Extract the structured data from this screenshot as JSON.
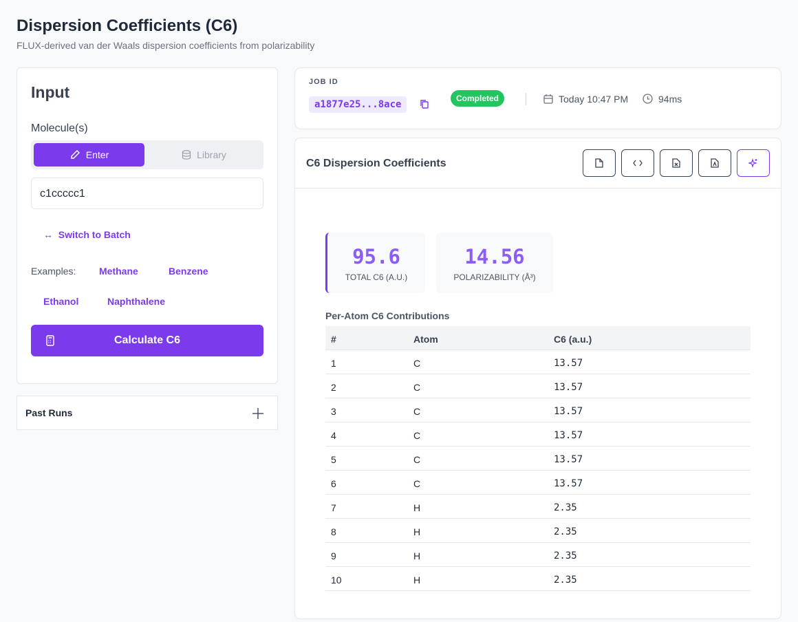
{
  "header": {
    "title": "Dispersion Coefficients (C6)",
    "subtitle": "FLUX-derived van der Waals dispersion coefficients from polarizability"
  },
  "input": {
    "title": "Input",
    "molecule_label": "Molecule(s)",
    "tabs": [
      "Enter",
      "Library"
    ],
    "smiles": "c1ccccc1",
    "switch": "Switch to Batch",
    "examples_label": "Examples:",
    "examples": [
      "Methane",
      "Benzene",
      "Ethanol",
      "Naphthalene"
    ],
    "button": "Calculate C6"
  },
  "past_runs": "Past Runs",
  "job": {
    "label": "JOB ID",
    "id": "a1877e25...8ace",
    "status": "Completed",
    "time": "Today 10:47 PM",
    "duration": "94ms"
  },
  "results": {
    "title": "C6 Dispersion Coefficients",
    "stats": [
      {
        "value": "95.6",
        "label": "TOTAL C6 (A.U.)"
      },
      {
        "value": "14.56",
        "label": "POLARIZABILITY (Å³)"
      }
    ],
    "table_title": "Per-Atom C6 Contributions",
    "columns": [
      "#",
      "Atom",
      "C6 (a.u.)"
    ],
    "rows": [
      [
        "1",
        "C",
        "13.57"
      ],
      [
        "2",
        "C",
        "13.57"
      ],
      [
        "3",
        "C",
        "13.57"
      ],
      [
        "4",
        "C",
        "13.57"
      ],
      [
        "5",
        "C",
        "13.57"
      ],
      [
        "6",
        "C",
        "13.57"
      ],
      [
        "7",
        "H",
        "2.35"
      ],
      [
        "8",
        "H",
        "2.35"
      ],
      [
        "9",
        "H",
        "2.35"
      ],
      [
        "10",
        "H",
        "2.35"
      ]
    ]
  }
}
